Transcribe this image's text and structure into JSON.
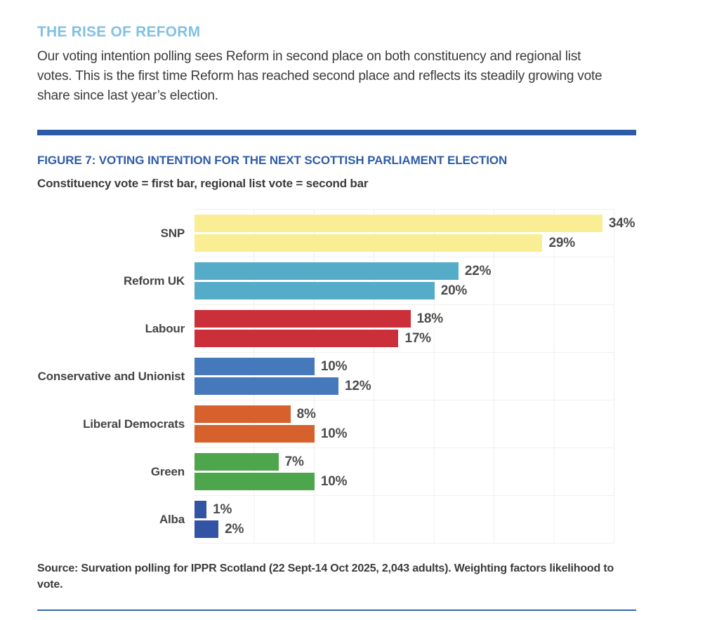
{
  "page": {
    "section_heading": "THE RISE OF REFORM",
    "intro_paragraph": "Our voting intention polling sees Reform in second place on both constituency and regional list votes. This is the first time Reform has reached second place and reflects its steadily growing vote share since last year’s election.",
    "source_note": "Source: Survation polling for IPPR Scotland (22 Sept-14 Oct 2025, 2,043 adults). Weighting factors likelihood to vote."
  },
  "figure": {
    "title": "FIGURE 7: VOTING INTENTION FOR THE NEXT SCOTTISH PARLIAMENT ELECTION",
    "subtitle": "Constituency vote = first bar, regional list vote = second bar"
  },
  "colors": {
    "heading_light_blue": "#82c1e4",
    "body_text": "#3b3b3b",
    "figure_title_blue": "#2e5ca8",
    "divider_blue": "#2b5aa7",
    "thin_rule_blue": "#3466ae",
    "value_label": "#4c4c4c",
    "category_label": "#444444",
    "gridline": "#efeeea"
  },
  "chart_data": {
    "type": "bar",
    "orientation": "horizontal",
    "title": "FIGURE 7: VOTING INTENTION FOR THE NEXT SCOTTISH PARLIAMENT ELECTION",
    "subtitle": "Constituency vote = first bar, regional list vote = second bar",
    "categories": [
      "SNP",
      "Reform UK",
      "Labour",
      "Conservative and Unionist",
      "Liberal Democrats",
      "Green",
      "Alba"
    ],
    "series": [
      {
        "name": "Constituency vote",
        "values": [
          34,
          22,
          18,
          10,
          8,
          7,
          1
        ]
      },
      {
        "name": "Regional list vote",
        "values": [
          29,
          20,
          17,
          12,
          10,
          10,
          2
        ]
      }
    ],
    "bar_colors": [
      "#f9ee93",
      "#54acc9",
      "#cb2f3a",
      "#4678bc",
      "#d7612c",
      "#4da64b",
      "#3354a4"
    ],
    "unit": "%",
    "xlim": [
      0,
      35
    ],
    "gridlines": "vertical every 5%, no tick labels",
    "legend": "none (explained in subtitle)"
  }
}
